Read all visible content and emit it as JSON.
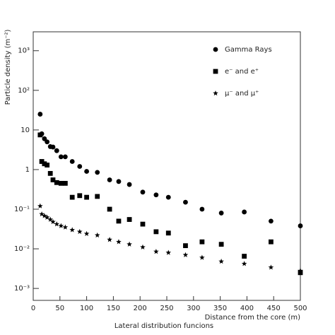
{
  "chart_data": {
    "type": "scatter",
    "x_label": "Distance from the core (m)",
    "y_label": "Particle density (m⁻²)",
    "caption": "Lateral distribution funcions",
    "log_y": true,
    "legend": "upper right",
    "x": [
      13,
      16,
      21,
      26,
      32,
      37,
      44,
      52,
      60,
      73,
      87,
      100,
      120,
      143,
      160,
      180,
      205,
      230,
      253,
      285,
      316,
      352,
      395,
      445,
      500
    ],
    "series": [
      {
        "name": "Gamma Rays",
        "marker": "circle",
        "color": "#000000",
        "values": [
          25,
          8,
          6,
          5,
          3.8,
          3.7,
          3,
          2.1,
          2.1,
          1.6,
          1.2,
          0.9,
          0.85,
          0.55,
          0.5,
          0.42,
          0.27,
          0.23,
          0.2,
          0.15,
          0.1,
          0.08,
          0.085,
          0.05,
          0.038
        ]
      },
      {
        "name": "e⁻ and e⁺",
        "marker": "square",
        "color": "#000000",
        "values": [
          7.5,
          1.6,
          1.4,
          1.3,
          0.8,
          0.55,
          0.47,
          0.45,
          0.45,
          0.2,
          0.22,
          0.2,
          0.21,
          0.1,
          0.05,
          0.055,
          0.042,
          0.027,
          0.025,
          0.012,
          0.015,
          0.013,
          0.0065,
          0.015,
          0.0025
        ]
      },
      {
        "name": "μ⁻ and μ⁺",
        "marker": "star",
        "color": "#000000",
        "values": [
          0.12,
          0.075,
          0.068,
          0.062,
          0.055,
          0.048,
          0.042,
          0.038,
          0.035,
          0.03,
          0.027,
          0.024,
          0.022,
          0.017,
          0.015,
          0.013,
          0.011,
          0.0085,
          0.008,
          0.007,
          0.006,
          0.0048,
          0.0042,
          0.0034,
          0.0028
        ]
      }
    ],
    "xlim": [
      0,
      500
    ],
    "xticks": [
      0,
      50,
      100,
      150,
      200,
      250,
      300,
      350,
      400,
      450,
      500
    ],
    "ylim": [
      0.0005,
      3000
    ],
    "yticks": [
      {
        "value": 0.001,
        "label": "10⁻³"
      },
      {
        "value": 0.01,
        "label": "10⁻²"
      },
      {
        "value": 0.1,
        "label": "10⁻¹"
      },
      1,
      10,
      {
        "value": 100,
        "label": "10²"
      },
      {
        "value": 1000,
        "label": "10³"
      }
    ]
  }
}
